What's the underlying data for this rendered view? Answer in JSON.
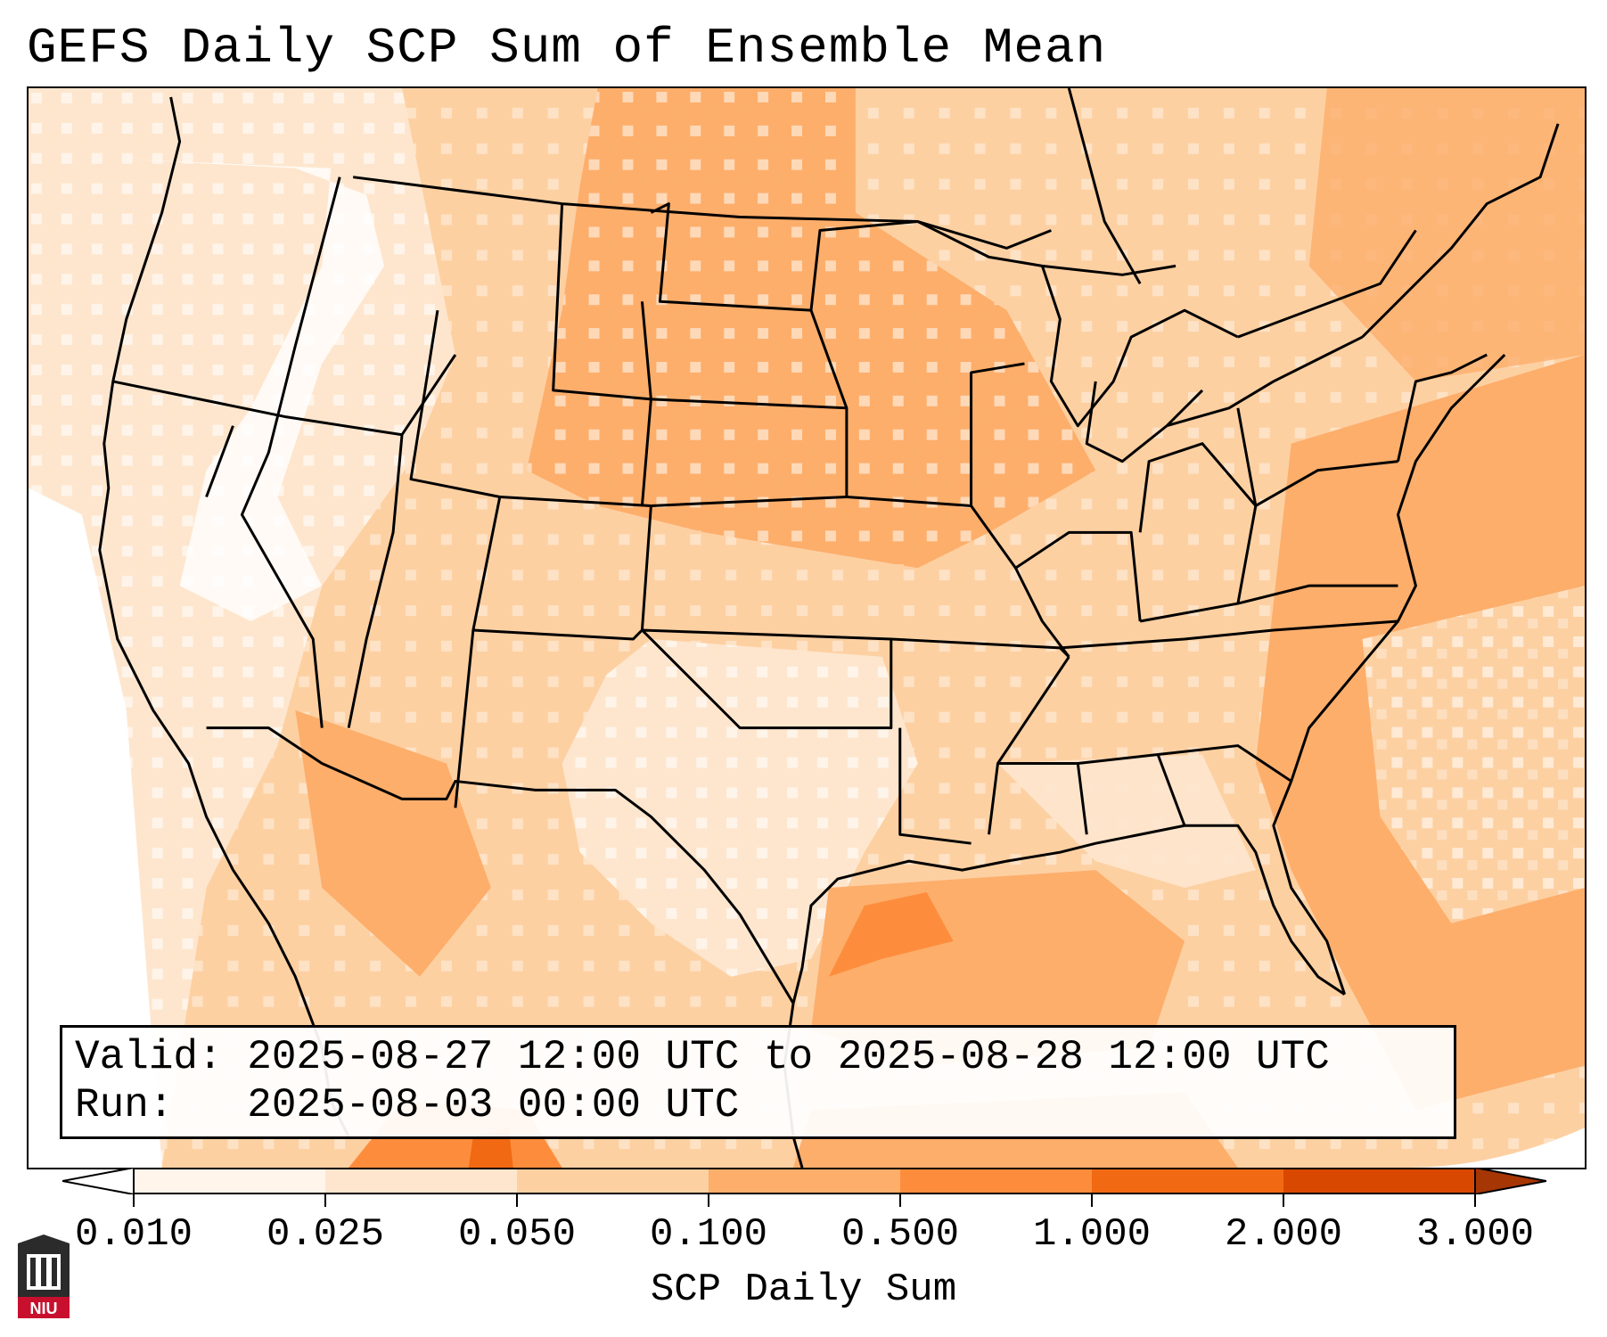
{
  "title": "GEFS Daily SCP Sum of Ensemble Mean",
  "info": {
    "valid_label": "Valid:",
    "valid_value": "2025-08-27 12:00 UTC to 2025-08-28 12:00 UTC",
    "run_label": "Run:",
    "run_value": "2025-08-03 00:00 UTC"
  },
  "colorbar": {
    "label": "SCP Daily Sum",
    "ticks": [
      "0.010",
      "0.025",
      "0.050",
      "0.100",
      "0.500",
      "1.000",
      "2.000",
      "3.000"
    ],
    "colors": [
      "#fff5eb",
      "#fee6ce",
      "#fdd0a2",
      "#fdae6b",
      "#fd8d3c",
      "#f16913",
      "#d94801",
      "#a63603"
    ]
  },
  "logo": {
    "text": "NIU",
    "icon": "university-tower-icon",
    "color": "#c8102e"
  }
}
